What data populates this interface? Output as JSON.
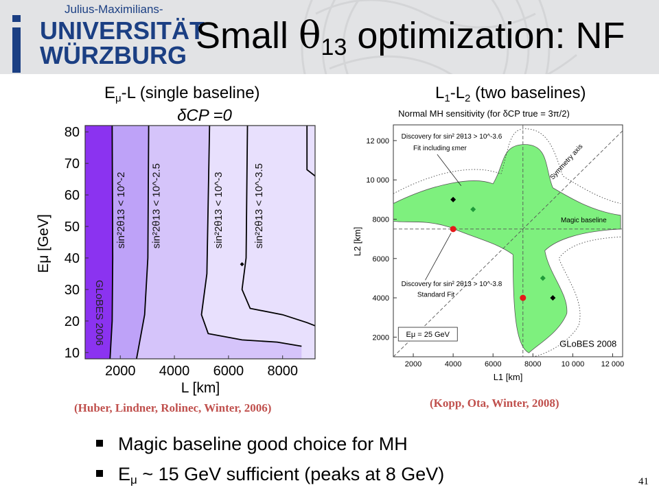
{
  "logo": {
    "line0": "Julius-Maximilians-",
    "line1": "UNIVERSITÄT",
    "line2": "WÜRZBURG"
  },
  "title": {
    "prefix": "Small ",
    "symbol": "θ",
    "sub": "13",
    "suffix": " optimization: NF"
  },
  "left_panel": {
    "caption_prefix": "E",
    "caption_sub": "μ",
    "caption_suffix": "-L (single baseline)",
    "plot_title": "δCP =0",
    "ylabel": "Eμ [GeV]",
    "xlabel": "L [km]",
    "watermark": "GLoBES 2006",
    "reference": "(Huber, Lindner, Rolinec, Winter, 2006)"
  },
  "right_panel": {
    "caption": "L1-L2 (two baselines)",
    "caption_a": "L",
    "caption_a_sub": "1",
    "caption_mid": "-L",
    "caption_b_sub": "2",
    "caption_suffix": " (two baselines)",
    "plot_title": "Normal MH sensitivity (for δCP true = 3π/2)",
    "ylabel": "L2 [km]",
    "xlabel": "L1 [km]",
    "annotations": [
      "Discovery for sin² 2θ13 > 10^-3.6",
      "Fit including εmer",
      "Symmetry axis",
      "Magic baseline",
      "Discovery for sin² 2θ13 > 10^-3.8",
      "Standard Fit",
      "Eμ = 25 GeV",
      "GLoBES 2008"
    ],
    "reference": "(Kopp, Ota, Winter, 2008)"
  },
  "chart_data": [
    {
      "type": "heatmap",
      "title": "δCP =0",
      "xlabel": "L [km]",
      "ylabel": "Eμ [GeV]",
      "xlim": [
        700,
        9200
      ],
      "ylim": [
        8,
        82
      ],
      "xticks": [
        2000,
        4000,
        6000,
        8000
      ],
      "yticks": [
        10,
        20,
        30,
        40,
        50,
        60,
        70,
        80
      ],
      "regions": [
        {
          "label": "sin²2θ13 < 10^-2",
          "color": "#8b33f0"
        },
        {
          "label": "sin²2θ13 < 10^-2.5",
          "color": "#a77ef6"
        },
        {
          "label": "sin²2θ13 < 10^-3",
          "color": "#bea2f8"
        },
        {
          "label": "sin²2θ13 < 10^-3.5",
          "color": "#d5c4fa"
        },
        {
          "label": "",
          "color": "#e8e0fd"
        }
      ],
      "marker": {
        "x": 6500,
        "y": 38
      },
      "grid": false
    },
    {
      "type": "scatter",
      "title": "Normal MH sensitivity (for δCP true = 3π/2)",
      "xlabel": "L1 [km]",
      "ylabel": "L2 [km]",
      "xlim": [
        1000,
        12500
      ],
      "ylim": [
        1000,
        12800
      ],
      "xticks": [
        2000,
        4000,
        6000,
        8000,
        10000,
        12000
      ],
      "yticks": [
        2000,
        4000,
        6000,
        8000,
        10000,
        12000
      ],
      "xtick_labels": [
        "2000",
        "4000",
        "6000",
        "8000",
        "10 000",
        "12 000"
      ],
      "ytick_labels": [
        "2000",
        "4000",
        "6000",
        "8000",
        "10 000",
        "12 000"
      ],
      "magic_baseline": 7500,
      "points": [
        {
          "x": 4000,
          "y": 9000,
          "color": "#000000",
          "shape": "diamond"
        },
        {
          "x": 5000,
          "y": 8500,
          "color": "#1f9a3a",
          "shape": "diamond"
        },
        {
          "x": 4000,
          "y": 7500,
          "color": "#e51a1a",
          "shape": "circle"
        },
        {
          "x": 8500,
          "y": 5000,
          "color": "#1f9a3a",
          "shape": "diamond"
        },
        {
          "x": 7500,
          "y": 4000,
          "color": "#e51a1a",
          "shape": "circle"
        },
        {
          "x": 9000,
          "y": 4000,
          "color": "#000000",
          "shape": "diamond"
        }
      ],
      "region_color": "#7ef07e",
      "grid": false
    }
  ],
  "bullets": [
    {
      "text": "Magic baseline good choice for MH"
    },
    {
      "prefix": "E",
      "sub": "μ",
      "suffix": " ~ 15 GeV sufficient (peaks at 8 GeV)"
    }
  ],
  "page_number": "41"
}
